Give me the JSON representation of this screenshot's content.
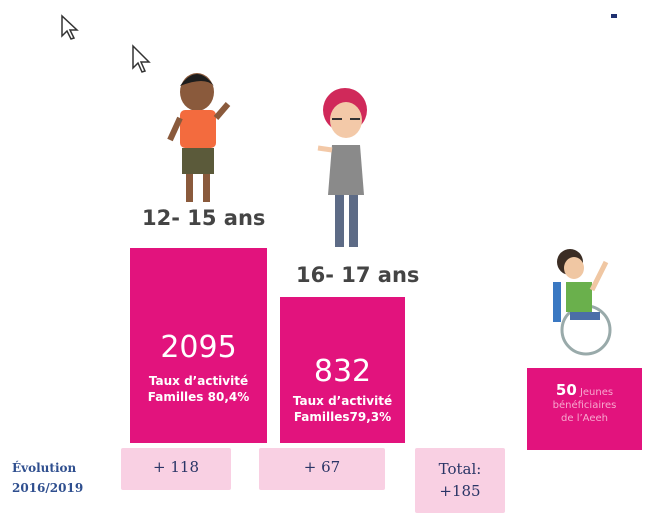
{
  "groups": [
    {
      "age": "12- 15 ans",
      "count": "2095",
      "rate_label": "Taux d’activité",
      "rate": "Familles 80,4%",
      "evolution": "+ 118"
    },
    {
      "age": "16- 17 ans",
      "count": "832",
      "rate_label": "Taux d’activité",
      "rate": "Familles79,3%",
      "evolution": "+ 67"
    }
  ],
  "aeeh": {
    "count": "50",
    "lines": [
      "Jeunes",
      "bénéficiaires",
      "de l’Aeeh"
    ]
  },
  "evolution_label": [
    "Évolution",
    "2016/2019"
  ],
  "total": [
    "Total:",
    "+185"
  ]
}
